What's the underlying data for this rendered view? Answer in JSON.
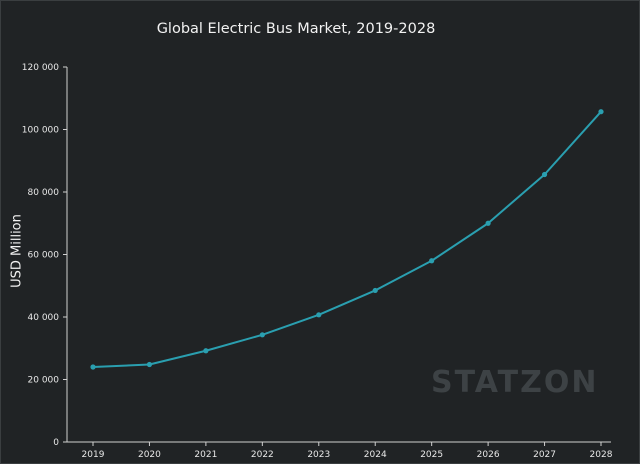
{
  "chart_data": {
    "type": "line",
    "title": "Global Electric Bus Market, 2019-2028",
    "xlabel": "",
    "ylabel": "USD Million",
    "x": [
      "2019",
      "2020",
      "2021",
      "2022",
      "2023",
      "2024",
      "2025",
      "2026",
      "2027",
      "2028"
    ],
    "series": [
      {
        "values": [
          24000,
          24800,
          29200,
          34300,
          40700,
          48500,
          58000,
          70000,
          85600,
          105700
        ]
      }
    ],
    "ylim": [
      0,
      120000
    ],
    "yticks": [
      "0",
      "20 000",
      "40 000",
      "60 000",
      "80 000",
      "100 000",
      "120 000"
    ],
    "grid": false,
    "line_color": "#2a9fb0"
  },
  "watermark": "STATZON"
}
